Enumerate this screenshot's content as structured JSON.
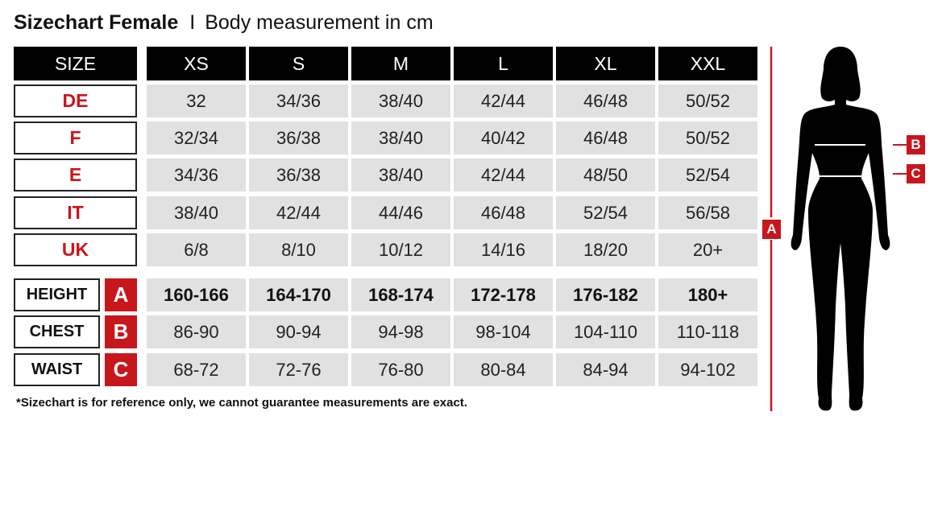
{
  "title": {
    "bold": "Sizechart Female",
    "separator": "I",
    "subtitle": "Body measurement in cm"
  },
  "table": {
    "corner": "SIZE",
    "sizes": [
      "XS",
      "S",
      "M",
      "L",
      "XL",
      "XXL"
    ],
    "conversion_rows": [
      {
        "label": "DE",
        "values": [
          "32",
          "34/36",
          "38/40",
          "42/44",
          "46/48",
          "50/52"
        ]
      },
      {
        "label": "F",
        "values": [
          "32/34",
          "36/38",
          "38/40",
          "40/42",
          "46/48",
          "50/52"
        ]
      },
      {
        "label": "E",
        "values": [
          "34/36",
          "36/38",
          "38/40",
          "42/44",
          "48/50",
          "52/54"
        ]
      },
      {
        "label": "IT",
        "values": [
          "38/40",
          "42/44",
          "44/46",
          "46/48",
          "52/54",
          "56/58"
        ]
      },
      {
        "label": "UK",
        "values": [
          "6/8",
          "8/10",
          "10/12",
          "14/16",
          "18/20",
          "20+"
        ]
      }
    ],
    "measurement_rows": [
      {
        "label": "HEIGHT",
        "marker": "A",
        "values": [
          "160-166",
          "164-170",
          "168-174",
          "172-178",
          "176-182",
          "180+"
        ],
        "bold": true
      },
      {
        "label": "CHEST",
        "marker": "B",
        "values": [
          "86-90",
          "90-94",
          "94-98",
          "98-104",
          "104-110",
          "110-118"
        ]
      },
      {
        "label": "WAIST",
        "marker": "C",
        "values": [
          "68-72",
          "72-76",
          "76-80",
          "80-84",
          "84-94",
          "94-102"
        ]
      }
    ]
  },
  "footnote": "*Sizechart is for reference only, we cannot guarantee measurements are exact.",
  "figure": {
    "markers": {
      "height": "A",
      "chest": "B",
      "waist": "C"
    }
  },
  "colors": {
    "accent": "#c8161d",
    "header": "#000000",
    "cell": "#e1e1e1"
  }
}
